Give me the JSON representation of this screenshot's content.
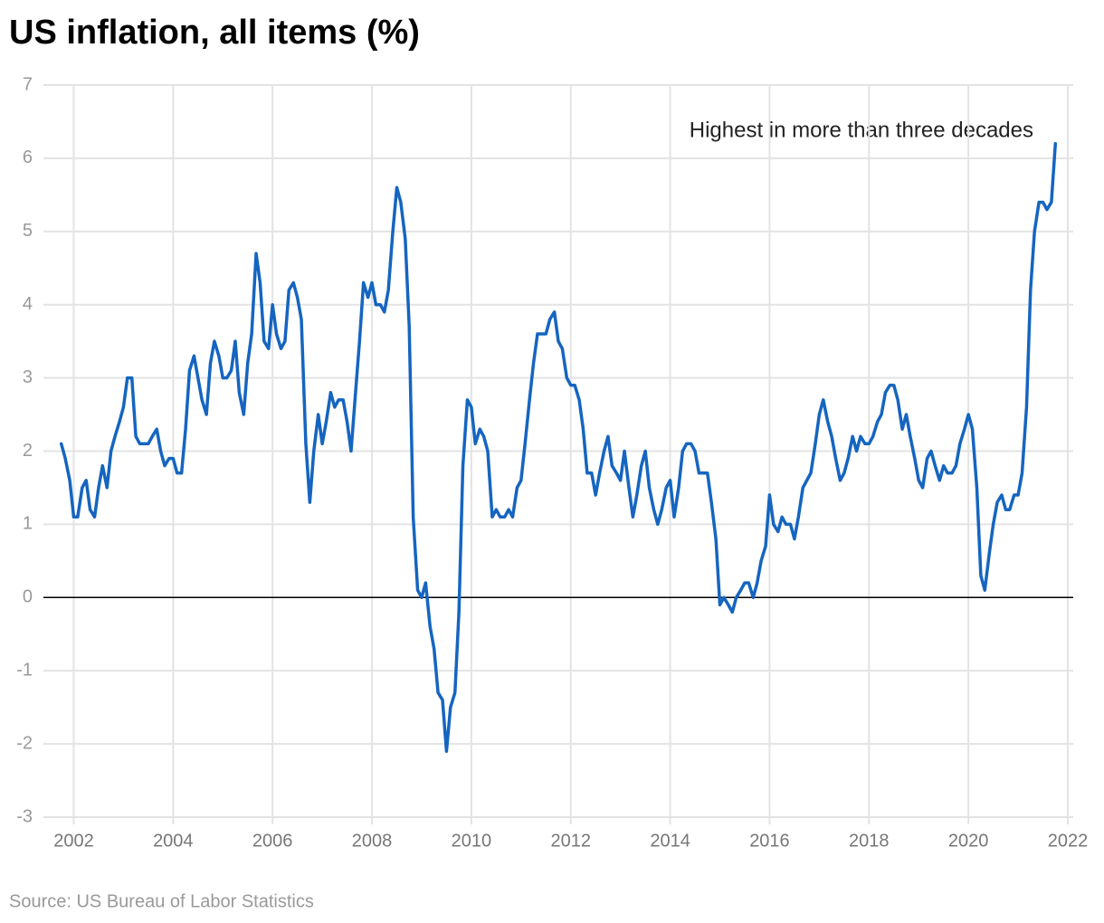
{
  "chart_data": {
    "type": "line",
    "title": "US inflation, all items (%)",
    "annotation": "Highest in more than three decades",
    "source": "Source: US Bureau of Labor Statistics",
    "color": "#1565c0",
    "grid": true,
    "xlim": [
      2001.5,
      2022
    ],
    "xticks": [
      2002,
      2004,
      2006,
      2008,
      2010,
      2012,
      2014,
      2016,
      2018,
      2020,
      2022
    ],
    "ylim": [
      -3,
      7
    ],
    "yticks": [
      -3,
      -2,
      -1,
      0,
      1,
      2,
      3,
      4,
      5,
      6,
      7
    ],
    "x": [
      2001.75,
      2001.83,
      2001.92,
      2002,
      2002.08,
      2002.17,
      2002.25,
      2002.33,
      2002.42,
      2002.5,
      2002.58,
      2002.67,
      2002.75,
      2002.83,
      2002.92,
      2003,
      2003.08,
      2003.17,
      2003.25,
      2003.33,
      2003.42,
      2003.5,
      2003.58,
      2003.67,
      2003.75,
      2003.83,
      2003.92,
      2004,
      2004.08,
      2004.17,
      2004.25,
      2004.33,
      2004.42,
      2004.5,
      2004.58,
      2004.67,
      2004.75,
      2004.83,
      2004.92,
      2005,
      2005.08,
      2005.17,
      2005.25,
      2005.33,
      2005.42,
      2005.5,
      2005.58,
      2005.67,
      2005.75,
      2005.83,
      2005.92,
      2006,
      2006.08,
      2006.17,
      2006.25,
      2006.33,
      2006.42,
      2006.5,
      2006.58,
      2006.67,
      2006.75,
      2006.83,
      2006.92,
      2007,
      2007.08,
      2007.17,
      2007.25,
      2007.33,
      2007.42,
      2007.5,
      2007.58,
      2007.67,
      2007.75,
      2007.83,
      2007.92,
      2008,
      2008.08,
      2008.17,
      2008.25,
      2008.33,
      2008.42,
      2008.5,
      2008.58,
      2008.67,
      2008.75,
      2008.83,
      2008.92,
      2009,
      2009.08,
      2009.17,
      2009.25,
      2009.33,
      2009.42,
      2009.5,
      2009.58,
      2009.67,
      2009.75,
      2009.83,
      2009.92,
      2010,
      2010.08,
      2010.17,
      2010.25,
      2010.33,
      2010.42,
      2010.5,
      2010.58,
      2010.67,
      2010.75,
      2010.83,
      2010.92,
      2011,
      2011.08,
      2011.17,
      2011.25,
      2011.33,
      2011.42,
      2011.5,
      2011.58,
      2011.67,
      2011.75,
      2011.83,
      2011.92,
      2012,
      2012.08,
      2012.17,
      2012.25,
      2012.33,
      2012.42,
      2012.5,
      2012.58,
      2012.67,
      2012.75,
      2012.83,
      2012.92,
      2013,
      2013.08,
      2013.17,
      2013.25,
      2013.33,
      2013.42,
      2013.5,
      2013.58,
      2013.67,
      2013.75,
      2013.83,
      2013.92,
      2014,
      2014.08,
      2014.17,
      2014.25,
      2014.33,
      2014.42,
      2014.5,
      2014.58,
      2014.67,
      2014.75,
      2014.83,
      2014.92,
      2015,
      2015.08,
      2015.17,
      2015.25,
      2015.33,
      2015.42,
      2015.5,
      2015.58,
      2015.67,
      2015.75,
      2015.83,
      2015.92,
      2016,
      2016.08,
      2016.17,
      2016.25,
      2016.33,
      2016.42,
      2016.5,
      2016.58,
      2016.67,
      2016.75,
      2016.83,
      2016.92,
      2017,
      2017.08,
      2017.17,
      2017.25,
      2017.33,
      2017.42,
      2017.5,
      2017.58,
      2017.67,
      2017.75,
      2017.83,
      2017.92,
      2018,
      2018.08,
      2018.17,
      2018.25,
      2018.33,
      2018.42,
      2018.5,
      2018.58,
      2018.67,
      2018.75,
      2018.83,
      2018.92,
      2019,
      2019.08,
      2019.17,
      2019.25,
      2019.33,
      2019.42,
      2019.5,
      2019.58,
      2019.67,
      2019.75,
      2019.83,
      2019.92,
      2020,
      2020.08,
      2020.17,
      2020.25,
      2020.33,
      2020.42,
      2020.5,
      2020.58,
      2020.67,
      2020.75,
      2020.83,
      2020.92,
      2021,
      2021.08,
      2021.17,
      2021.25,
      2021.33,
      2021.42,
      2021.5,
      2021.58,
      2021.67,
      2021.75
    ],
    "values": [
      2.1,
      1.9,
      1.6,
      1.1,
      1.1,
      1.5,
      1.6,
      1.2,
      1.1,
      1.5,
      1.8,
      1.5,
      2.0,
      2.2,
      2.4,
      2.6,
      3.0,
      3.0,
      2.2,
      2.1,
      2.1,
      2.1,
      2.2,
      2.3,
      2.0,
      1.8,
      1.9,
      1.9,
      1.7,
      1.7,
      2.3,
      3.1,
      3.3,
      3.0,
      2.7,
      2.5,
      3.2,
      3.5,
      3.3,
      3.0,
      3.0,
      3.1,
      3.5,
      2.8,
      2.5,
      3.2,
      3.6,
      4.7,
      4.3,
      3.5,
      3.4,
      4.0,
      3.6,
      3.4,
      3.5,
      4.2,
      4.3,
      4.1,
      3.8,
      2.1,
      1.3,
      2.0,
      2.5,
      2.1,
      2.4,
      2.8,
      2.6,
      2.7,
      2.7,
      2.4,
      2.0,
      2.8,
      3.5,
      4.3,
      4.1,
      4.3,
      4.0,
      4.0,
      3.9,
      4.2,
      5.0,
      5.6,
      5.4,
      4.9,
      3.7,
      1.1,
      0.1,
      0.0,
      0.2,
      -0.4,
      -0.7,
      -1.3,
      -1.4,
      -2.1,
      -1.5,
      -1.3,
      -0.2,
      1.8,
      2.7,
      2.6,
      2.1,
      2.3,
      2.2,
      2.0,
      1.1,
      1.2,
      1.1,
      1.1,
      1.2,
      1.1,
      1.5,
      1.6,
      2.1,
      2.7,
      3.2,
      3.6,
      3.6,
      3.6,
      3.8,
      3.9,
      3.5,
      3.4,
      3.0,
      2.9,
      2.9,
      2.7,
      2.3,
      1.7,
      1.7,
      1.4,
      1.7,
      2.0,
      2.2,
      1.8,
      1.7,
      1.6,
      2.0,
      1.5,
      1.1,
      1.4,
      1.8,
      2.0,
      1.5,
      1.2,
      1.0,
      1.2,
      1.5,
      1.6,
      1.1,
      1.5,
      2.0,
      2.1,
      2.1,
      2.0,
      1.7,
      1.7,
      1.7,
      1.3,
      0.8,
      -0.1,
      0.0,
      -0.1,
      -0.2,
      0.0,
      0.1,
      0.2,
      0.2,
      0.0,
      0.2,
      0.5,
      0.7,
      1.4,
      1.0,
      0.9,
      1.1,
      1.0,
      1.0,
      0.8,
      1.1,
      1.5,
      1.6,
      1.7,
      2.1,
      2.5,
      2.7,
      2.4,
      2.2,
      1.9,
      1.6,
      1.7,
      1.9,
      2.2,
      2.0,
      2.2,
      2.1,
      2.1,
      2.2,
      2.4,
      2.5,
      2.8,
      2.9,
      2.9,
      2.7,
      2.3,
      2.5,
      2.2,
      1.9,
      1.6,
      1.5,
      1.9,
      2.0,
      1.8,
      1.6,
      1.8,
      1.7,
      1.7,
      1.8,
      2.1,
      2.3,
      2.5,
      2.3,
      1.5,
      0.3,
      0.1,
      0.6,
      1.0,
      1.3,
      1.4,
      1.2,
      1.2,
      1.4,
      1.4,
      1.7,
      2.6,
      4.2,
      5.0,
      5.4,
      5.4,
      5.3,
      5.4,
      6.2
    ]
  }
}
